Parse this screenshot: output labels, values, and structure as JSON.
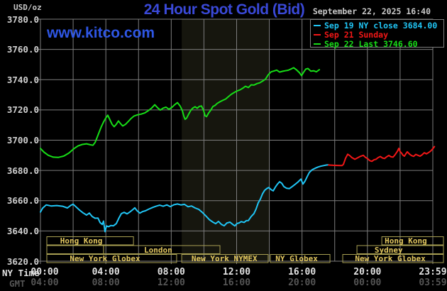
{
  "header": {
    "unit_label": "USD/oz",
    "title": "24 Hour Spot Gold (Bid)",
    "datetime": "September 22, 2025 16:40",
    "watermark": "www.kitco.com"
  },
  "colors": {
    "title_blue": "#3a49d8",
    "watermark_blue": "#2e56e4",
    "sep19_cyan": "#20c5f5",
    "sep21_red": "#f21717",
    "sep22_green": "#17dd17",
    "grid_gray": "#7d7d7d",
    "session_border": "#a89f52",
    "session_text": "#e2c75f",
    "nymex_band": "#16160e",
    "background": "#000000"
  },
  "legend": [
    {
      "label": "Sep 19 NY close 3684.00",
      "color": "#20c5f5"
    },
    {
      "label": "Sep 21 Sunday",
      "color": "#f21717"
    },
    {
      "label": "Sep 22 Last 3746.60",
      "color": "#17dd17"
    }
  ],
  "axes": {
    "x_row1_label": "NY Time",
    "x_row2_label": "GMT",
    "y_ticks": [
      {
        "v": 3780,
        "label": "3780.0"
      },
      {
        "v": 3760,
        "label": "3760.0"
      },
      {
        "v": 3740,
        "label": "3740.0"
      },
      {
        "v": 3720,
        "label": "3720.0"
      },
      {
        "v": 3700,
        "label": "3700.0"
      },
      {
        "v": 3680,
        "label": "3680.0"
      },
      {
        "v": 3660,
        "label": "3660.0"
      },
      {
        "v": 3640,
        "label": "3640.0"
      },
      {
        "v": 3620,
        "label": "3620.0"
      }
    ],
    "x_ticks": [
      {
        "h": 0,
        "ny": "00:00",
        "gmt": "04:00",
        "dx": 6
      },
      {
        "h": 4,
        "ny": "04:00",
        "gmt": "08:00",
        "dx": 0
      },
      {
        "h": 8,
        "ny": "08:00",
        "gmt": "12:00",
        "dx": 0
      },
      {
        "h": 12,
        "ny": "12:00",
        "gmt": "16:00",
        "dx": 0
      },
      {
        "h": 16,
        "ny": "16:00",
        "gmt": "20:00",
        "dx": 0
      },
      {
        "h": 20,
        "ny": "20:00",
        "gmt": "00:00",
        "dx": 0
      },
      {
        "h": 24,
        "ny": "23:59",
        "gmt": "03:59",
        "dx": 0
      }
    ]
  },
  "sessions": [
    {
      "row": 1,
      "label": "Hong Kong",
      "start_h": 0.39,
      "end_h": 5.69,
      "label_h": 2.5
    },
    {
      "row": 1,
      "label": "Hong Kong",
      "start_h": 20.88,
      "end_h": 24.65,
      "label_h": 22.35
    },
    {
      "row": 2,
      "label": "",
      "start_h": 0.39,
      "end_h": 3.86,
      "label_h": null
    },
    {
      "row": 2,
      "label": "London",
      "start_h": 3.86,
      "end_h": 10.98,
      "label_h": 7.2
    },
    {
      "row": 2,
      "label": "Sydney",
      "start_h": 19.36,
      "end_h": 24.65,
      "label_h": 21.3
    },
    {
      "row": 3,
      "label": "New York Globex",
      "start_h": 0.39,
      "end_h": 8.33,
      "label_h": 3.95
    },
    {
      "row": 3,
      "label": "New York NYMEX",
      "start_h": 8.64,
      "end_h": 13.93,
      "label_h": 11.25
    },
    {
      "row": 3,
      "label": "NY Globex",
      "start_h": 14.06,
      "end_h": 17.71,
      "label_h": 15.67
    },
    {
      "row": 3,
      "label": "New York Globex",
      "start_h": 18.49,
      "end_h": 24.65,
      "label_h": 21.4
    }
  ],
  "chart_data": {
    "type": "line",
    "title": "24 Hour Spot Gold (Bid)",
    "ylabel": "USD/oz",
    "xlim_hours": [
      0,
      24
    ],
    "ylim": [
      3620,
      3780
    ],
    "y_tick_step": 20,
    "x_gridline_step_hours": 2,
    "grid": true,
    "legend_position": "top-right",
    "shaded_band_hours": [
      8.64,
      13.97
    ],
    "series": [
      {
        "name": "Sep 19 NY close",
        "color": "#20c5f5",
        "close": 3684.0,
        "points": [
          [
            0,
            3652.5
          ],
          [
            0.13,
            3655
          ],
          [
            0.35,
            3657.2
          ],
          [
            0.65,
            3656.5
          ],
          [
            1,
            3656.8
          ],
          [
            1.35,
            3656.3
          ],
          [
            1.65,
            3655.2
          ],
          [
            1.87,
            3657
          ],
          [
            2,
            3657.7
          ],
          [
            2.17,
            3656
          ],
          [
            2.39,
            3653.8
          ],
          [
            2.6,
            3652
          ],
          [
            2.82,
            3650.5
          ],
          [
            2.99,
            3651.8
          ],
          [
            3.17,
            3649.5
          ],
          [
            3.34,
            3648.4
          ],
          [
            3.52,
            3648.5
          ],
          [
            3.65,
            3645.5
          ],
          [
            3.78,
            3644.3
          ],
          [
            3.86,
            3646.5
          ],
          [
            3.95,
            3639.5
          ],
          [
            4.04,
            3643.3
          ],
          [
            4.17,
            3642.8
          ],
          [
            4.3,
            3643.6
          ],
          [
            4.47,
            3643.4
          ],
          [
            4.64,
            3644.8
          ],
          [
            4.82,
            3649
          ],
          [
            4.95,
            3651.5
          ],
          [
            5.12,
            3652.3
          ],
          [
            5.3,
            3651.3
          ],
          [
            5.47,
            3652.5
          ],
          [
            5.64,
            3654
          ],
          [
            5.77,
            3655.3
          ],
          [
            5.9,
            3653.5
          ],
          [
            6.08,
            3651.8
          ],
          [
            6.25,
            3652.8
          ],
          [
            6.42,
            3653.3
          ],
          [
            6.64,
            3654.5
          ],
          [
            6.86,
            3655.5
          ],
          [
            7.07,
            3656.3
          ],
          [
            7.29,
            3657
          ],
          [
            7.51,
            3656.3
          ],
          [
            7.73,
            3657.2
          ],
          [
            7.94,
            3656.1
          ],
          [
            8.16,
            3657.3
          ],
          [
            8.38,
            3657.8
          ],
          [
            8.59,
            3657.2
          ],
          [
            8.81,
            3657.6
          ],
          [
            9.03,
            3656
          ],
          [
            9.24,
            3656.5
          ],
          [
            9.46,
            3655.2
          ],
          [
            9.68,
            3654.3
          ],
          [
            9.9,
            3652.3
          ],
          [
            10.11,
            3650
          ],
          [
            10.33,
            3647.5
          ],
          [
            10.55,
            3645.8
          ],
          [
            10.72,
            3644.8
          ],
          [
            10.89,
            3646.3
          ],
          [
            11.07,
            3644.3
          ],
          [
            11.24,
            3643.4
          ],
          [
            11.41,
            3645.3
          ],
          [
            11.59,
            3645.8
          ],
          [
            11.76,
            3644.3
          ],
          [
            11.89,
            3643.3
          ],
          [
            12.02,
            3644.9
          ],
          [
            12.15,
            3645.3
          ],
          [
            12.28,
            3646.2
          ],
          [
            12.46,
            3645.6
          ],
          [
            12.59,
            3646.8
          ],
          [
            12.72,
            3646.9
          ],
          [
            12.89,
            3649.5
          ],
          [
            13.06,
            3651.5
          ],
          [
            13.19,
            3654.5
          ],
          [
            13.32,
            3658.5
          ],
          [
            13.45,
            3661
          ],
          [
            13.58,
            3664.5
          ],
          [
            13.71,
            3666.8
          ],
          [
            13.84,
            3668
          ],
          [
            13.97,
            3668.7
          ],
          [
            14.11,
            3667.3
          ],
          [
            14.24,
            3666.5
          ],
          [
            14.37,
            3669
          ],
          [
            14.5,
            3671
          ],
          [
            14.63,
            3672.5
          ],
          [
            14.76,
            3671.5
          ],
          [
            14.89,
            3669.3
          ],
          [
            15.06,
            3668.2
          ],
          [
            15.23,
            3668
          ],
          [
            15.41,
            3669.4
          ],
          [
            15.58,
            3670.8
          ],
          [
            15.75,
            3672.3
          ],
          [
            15.93,
            3674.3
          ],
          [
            16.06,
            3671
          ],
          [
            16.19,
            3673
          ],
          [
            16.32,
            3676
          ],
          [
            16.45,
            3678.7
          ],
          [
            16.62,
            3680.5
          ],
          [
            16.8,
            3681.4
          ],
          [
            16.97,
            3682.2
          ],
          [
            17.14,
            3682.8
          ],
          [
            17.32,
            3683.2
          ],
          [
            17.49,
            3683.6
          ],
          [
            17.62,
            3683.7
          ]
        ]
      },
      {
        "name": "Sep 21 Sunday",
        "color": "#f21717",
        "points": [
          [
            17.62,
            3683.6
          ],
          [
            17.92,
            3683.4
          ],
          [
            18.18,
            3683.3
          ],
          [
            18.44,
            3683.2
          ],
          [
            18.53,
            3684
          ],
          [
            18.66,
            3688
          ],
          [
            18.79,
            3690.7
          ],
          [
            18.92,
            3689.8
          ],
          [
            19.05,
            3688.5
          ],
          [
            19.23,
            3687.4
          ],
          [
            19.4,
            3688.3
          ],
          [
            19.57,
            3689.3
          ],
          [
            19.75,
            3690
          ],
          [
            19.88,
            3688.6
          ],
          [
            20.01,
            3687.8
          ],
          [
            20.14,
            3686.5
          ],
          [
            20.27,
            3686
          ],
          [
            20.4,
            3687
          ],
          [
            20.53,
            3687.4
          ],
          [
            20.66,
            3688.5
          ],
          [
            20.79,
            3689.2
          ],
          [
            20.92,
            3688.2
          ],
          [
            21.05,
            3687.9
          ],
          [
            21.18,
            3689
          ],
          [
            21.31,
            3689.9
          ],
          [
            21.44,
            3689
          ],
          [
            21.57,
            3688.8
          ],
          [
            21.7,
            3690.5
          ],
          [
            21.83,
            3692.6
          ],
          [
            21.92,
            3694.6
          ],
          [
            22,
            3692.5
          ],
          [
            22.09,
            3691.4
          ],
          [
            22.18,
            3690
          ],
          [
            22.26,
            3689.4
          ],
          [
            22.35,
            3691
          ],
          [
            22.44,
            3692.3
          ],
          [
            22.57,
            3690.8
          ],
          [
            22.7,
            3689.8
          ],
          [
            22.83,
            3689.3
          ],
          [
            22.96,
            3690.6
          ],
          [
            23.09,
            3690
          ],
          [
            23.22,
            3689.4
          ],
          [
            23.35,
            3690.4
          ],
          [
            23.48,
            3691.7
          ],
          [
            23.61,
            3691
          ],
          [
            23.74,
            3691.8
          ],
          [
            23.87,
            3692.8
          ],
          [
            24,
            3694.3
          ],
          [
            24.1,
            3695.8
          ]
        ]
      },
      {
        "name": "Sep 22 Last",
        "color": "#17dd17",
        "last": 3746.6,
        "points": [
          [
            0,
            3694.5
          ],
          [
            0.22,
            3692
          ],
          [
            0.48,
            3690
          ],
          [
            0.78,
            3688.8
          ],
          [
            1.09,
            3688.6
          ],
          [
            1.43,
            3689.5
          ],
          [
            1.74,
            3691.5
          ],
          [
            2.04,
            3694.3
          ],
          [
            2.3,
            3696.2
          ],
          [
            2.56,
            3697.2
          ],
          [
            2.82,
            3697.6
          ],
          [
            3.04,
            3697
          ],
          [
            3.21,
            3696.6
          ],
          [
            3.34,
            3698.5
          ],
          [
            3.47,
            3702
          ],
          [
            3.6,
            3705.5
          ],
          [
            3.73,
            3709
          ],
          [
            3.86,
            3712
          ],
          [
            3.99,
            3714.5
          ],
          [
            4.12,
            3716.5
          ],
          [
            4.25,
            3713.5
          ],
          [
            4.38,
            3710.5
          ],
          [
            4.51,
            3708.9
          ],
          [
            4.64,
            3710.5
          ],
          [
            4.77,
            3712.7
          ],
          [
            4.9,
            3711
          ],
          [
            5.03,
            3709.4
          ],
          [
            5.21,
            3710.5
          ],
          [
            5.38,
            3712.5
          ],
          [
            5.56,
            3714.5
          ],
          [
            5.73,
            3716
          ],
          [
            5.95,
            3716.8
          ],
          [
            6.16,
            3717.2
          ],
          [
            6.38,
            3718
          ],
          [
            6.6,
            3719.5
          ],
          [
            6.81,
            3721.3
          ],
          [
            6.99,
            3723.4
          ],
          [
            7.16,
            3721.5
          ],
          [
            7.33,
            3719.9
          ],
          [
            7.51,
            3721.2
          ],
          [
            7.68,
            3721.8
          ],
          [
            7.86,
            3720.4
          ],
          [
            8.03,
            3721.6
          ],
          [
            8.2,
            3723.3
          ],
          [
            8.38,
            3724.8
          ],
          [
            8.55,
            3722.5
          ],
          [
            8.68,
            3719.5
          ],
          [
            8.77,
            3715.8
          ],
          [
            8.85,
            3713.8
          ],
          [
            8.94,
            3714.6
          ],
          [
            9.07,
            3717.3
          ],
          [
            9.2,
            3719.8
          ],
          [
            9.33,
            3721.3
          ],
          [
            9.46,
            3722.1
          ],
          [
            9.59,
            3721.1
          ],
          [
            9.72,
            3722.4
          ],
          [
            9.85,
            3722.6
          ],
          [
            9.98,
            3719.5
          ],
          [
            10.07,
            3716.2
          ],
          [
            10.16,
            3715.6
          ],
          [
            10.29,
            3718
          ],
          [
            10.42,
            3719.9
          ],
          [
            10.55,
            3722.3
          ],
          [
            10.68,
            3723
          ],
          [
            10.81,
            3724.3
          ],
          [
            10.98,
            3725.4
          ],
          [
            11.15,
            3726.3
          ],
          [
            11.33,
            3727.2
          ],
          [
            11.5,
            3728.8
          ],
          [
            11.67,
            3730.3
          ],
          [
            11.85,
            3731.5
          ],
          [
            12.02,
            3732.5
          ],
          [
            12.2,
            3733.2
          ],
          [
            12.37,
            3734.3
          ],
          [
            12.54,
            3735.6
          ],
          [
            12.72,
            3734.8
          ],
          [
            12.89,
            3736.6
          ],
          [
            13.06,
            3736.4
          ],
          [
            13.24,
            3737.4
          ],
          [
            13.41,
            3737.9
          ],
          [
            13.58,
            3739
          ],
          [
            13.76,
            3740.3
          ],
          [
            13.93,
            3743.2
          ],
          [
            14.11,
            3745.2
          ],
          [
            14.28,
            3745.7
          ],
          [
            14.45,
            3746.3
          ],
          [
            14.63,
            3745
          ],
          [
            14.8,
            3745.5
          ],
          [
            14.97,
            3745.9
          ],
          [
            15.15,
            3746.2
          ],
          [
            15.32,
            3747
          ],
          [
            15.49,
            3747.9
          ],
          [
            15.67,
            3746.4
          ],
          [
            15.84,
            3744.6
          ],
          [
            15.97,
            3742.7
          ],
          [
            16.1,
            3745
          ],
          [
            16.23,
            3747
          ],
          [
            16.36,
            3747.4
          ],
          [
            16.54,
            3745.6
          ],
          [
            16.71,
            3745.9
          ],
          [
            16.88,
            3745.2
          ],
          [
            17.01,
            3746.2
          ],
          [
            17.06,
            3746.6
          ]
        ]
      }
    ]
  }
}
